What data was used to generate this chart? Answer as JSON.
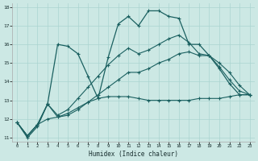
{
  "xlabel": "Humidex (Indice chaleur)",
  "background_color": "#cce8e4",
  "grid_color": "#aad4d0",
  "line_color": "#1a6060",
  "xlim": [
    -0.5,
    23.5
  ],
  "ylim": [
    10.8,
    18.2
  ],
  "xticks": [
    0,
    1,
    2,
    3,
    4,
    5,
    6,
    7,
    8,
    9,
    10,
    11,
    12,
    13,
    14,
    15,
    16,
    17,
    18,
    19,
    20,
    21,
    22,
    23
  ],
  "yticks": [
    11,
    12,
    13,
    14,
    15,
    16,
    17,
    18
  ],
  "s1_x": [
    0,
    1,
    2,
    3,
    4,
    5,
    6,
    7,
    8,
    9,
    10,
    11,
    12,
    13,
    14,
    15,
    16,
    17,
    18,
    19,
    20,
    21,
    22,
    23
  ],
  "s1_y": [
    11.8,
    11.0,
    11.6,
    12.8,
    16.0,
    15.9,
    15.5,
    14.3,
    13.1,
    15.3,
    17.1,
    17.5,
    17.0,
    17.8,
    17.8,
    17.5,
    17.4,
    16.0,
    16.0,
    15.4,
    14.7,
    13.9,
    13.3,
    13.3
  ],
  "s2_x": [
    0,
    1,
    2,
    3,
    4,
    5,
    6,
    7,
    8,
    9,
    10,
    11,
    12,
    13,
    14,
    15,
    16,
    17,
    18,
    19,
    20,
    21,
    22,
    23
  ],
  "s2_y": [
    11.8,
    11.1,
    11.7,
    12.8,
    12.1,
    12.2,
    12.5,
    12.9,
    13.1,
    13.2,
    13.2,
    13.2,
    13.1,
    13.0,
    13.0,
    13.0,
    13.0,
    13.0,
    13.1,
    13.1,
    13.1,
    13.2,
    13.3,
    13.3
  ],
  "s3_x": [
    0,
    1,
    2,
    3,
    4,
    5,
    6,
    7,
    8,
    9,
    10,
    11,
    12,
    13,
    14,
    15,
    16,
    17,
    18,
    19,
    20,
    21,
    22,
    23
  ],
  "s3_y": [
    11.8,
    11.1,
    11.7,
    12.0,
    12.1,
    12.3,
    12.6,
    12.9,
    13.3,
    13.7,
    14.1,
    14.5,
    14.5,
    14.7,
    15.0,
    15.2,
    15.5,
    15.6,
    15.4,
    15.4,
    15.0,
    14.5,
    13.8,
    13.3
  ],
  "s4_x": [
    0,
    1,
    2,
    3,
    4,
    5,
    6,
    7,
    8,
    9,
    10,
    11,
    12,
    13,
    14,
    15,
    16,
    17,
    18,
    19,
    20,
    21,
    22,
    23
  ],
  "s4_y": [
    11.8,
    11.1,
    11.7,
    12.8,
    12.2,
    12.5,
    13.1,
    13.7,
    14.3,
    14.9,
    15.4,
    15.8,
    15.5,
    15.7,
    16.0,
    16.3,
    16.5,
    16.1,
    15.5,
    15.4,
    14.8,
    14.1,
    13.5,
    13.3
  ]
}
